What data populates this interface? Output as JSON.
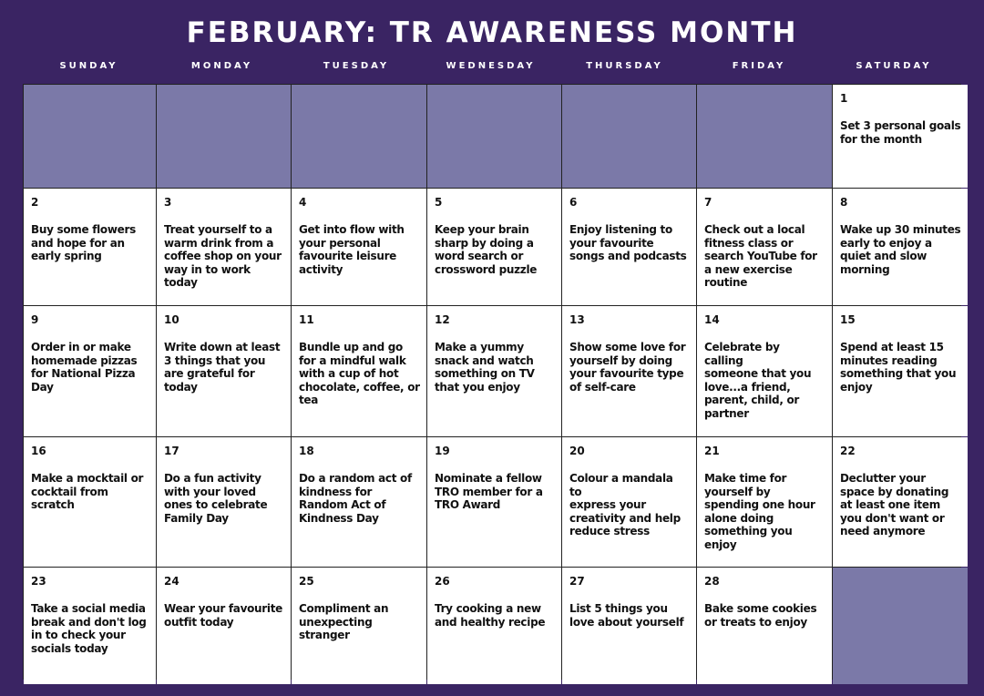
{
  "title": "FEBRUARY: TR AWARENESS MONTH",
  "weekdays": [
    "SUNDAY",
    "MONDAY",
    "TUESDAY",
    "WEDNESDAY",
    "THURSDAY",
    "FRIDAY",
    "SATURDAY"
  ],
  "colors": {
    "background": "#3a2463",
    "empty_cell": "#7b79a8",
    "cell": "#ffffff"
  },
  "cells": [
    null,
    null,
    null,
    null,
    null,
    null,
    {
      "day": "1",
      "text": "Set 3 personal goals for the month"
    },
    {
      "day": "2",
      "text": "Buy some flowers and hope for an early spring"
    },
    {
      "day": "3",
      "text": "Treat yourself to a warm drink from a coffee shop on your way in to work today"
    },
    {
      "day": "4",
      "text": "Get into flow with your personal favourite leisure activity"
    },
    {
      "day": "5",
      "text": "Keep your brain sharp by doing a word search or crossword puzzle"
    },
    {
      "day": "6",
      "text": "Enjoy listening to your favourite songs and podcasts"
    },
    {
      "day": "7",
      "text": "Check out a local fitness class or search YouTube for a new exercise routine"
    },
    {
      "day": "8",
      "text": "Wake up 30 minutes early to enjoy a quiet and slow morning"
    },
    {
      "day": "9",
      "text": "Order in or make homemade pizzas for National Pizza Day"
    },
    {
      "day": "10",
      "text": "Write down at least 3 things that you are grateful for today"
    },
    {
      "day": "11",
      "text": "Bundle up and go for a mindful walk with a cup of hot chocolate, coffee, or tea"
    },
    {
      "day": "12",
      "text": "Make a yummy snack and watch something on TV that you enjoy"
    },
    {
      "day": "13",
      "text": "Show some love for yourself by doing your favourite type of self-care"
    },
    {
      "day": "14",
      "text": "Celebrate by\ncalling\nsomeone that you love...a friend, parent, child, or partner"
    },
    {
      "day": "15",
      "text": "Spend at least 15 minutes reading something that you enjoy"
    },
    {
      "day": "16",
      "text": "Make a mocktail or cocktail from scratch"
    },
    {
      "day": "17",
      "text": "Do a fun activity with your loved ones to celebrate Family Day"
    },
    {
      "day": "18",
      "text": "Do a random act of kindness for Random Act of Kindness Day"
    },
    {
      "day": "19",
      "text": "Nominate a fellow TRO member for a TRO Award"
    },
    {
      "day": "20",
      "text": "Colour a mandala\nto\nexpress your creativity and help reduce stress"
    },
    {
      "day": "21",
      "text": "Make time for yourself by spending one hour alone doing something you enjoy"
    },
    {
      "day": "22",
      "text": "Declutter your space by donating at least one item you don't want or need anymore"
    },
    {
      "day": "23",
      "text": "Take a social media break and don't log in to check your socials today"
    },
    {
      "day": "24",
      "text": "Wear your favourite outfit today"
    },
    {
      "day": "25",
      "text": "Compliment an unexpecting stranger"
    },
    {
      "day": "26",
      "text": "Try cooking a new and healthy recipe"
    },
    {
      "day": "27",
      "text": "List 5 things you love about yourself"
    },
    {
      "day": "28",
      "text": "Bake some cookies or treats to enjoy"
    },
    null
  ]
}
